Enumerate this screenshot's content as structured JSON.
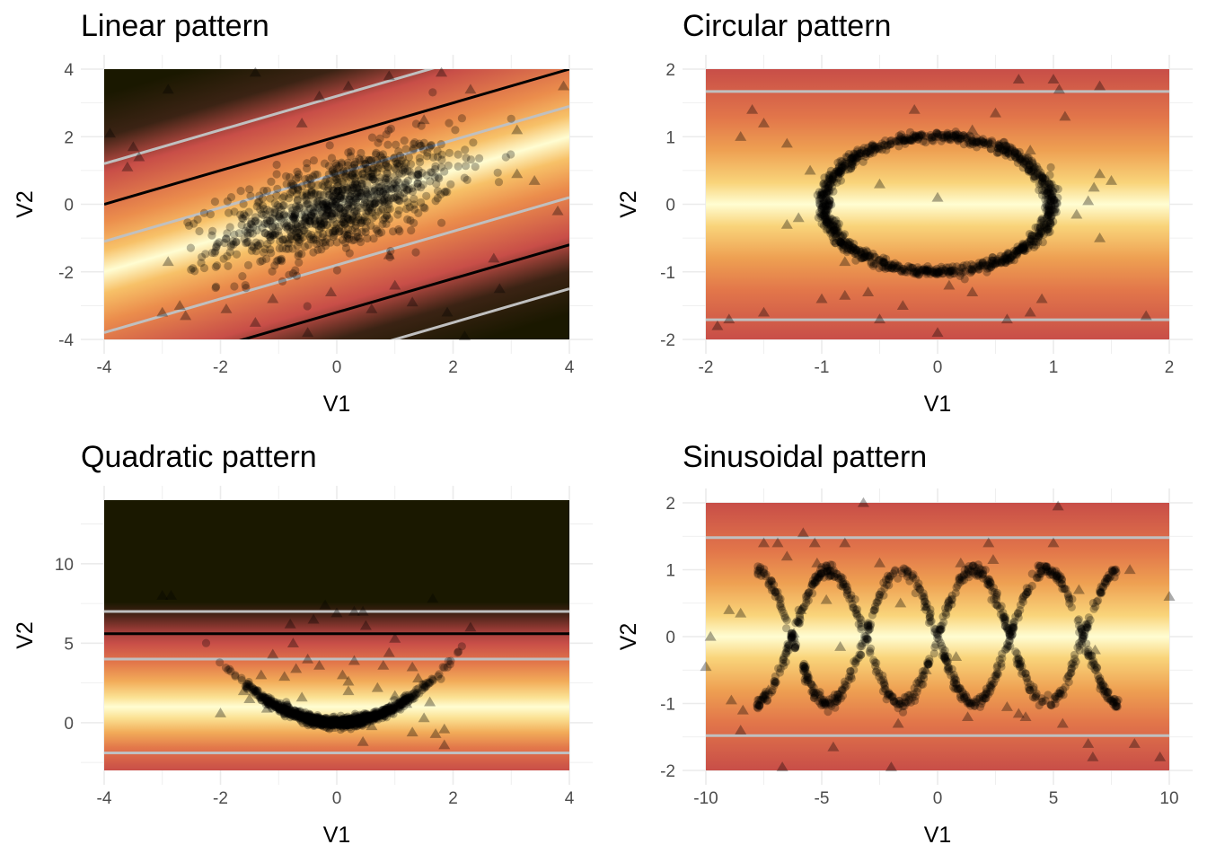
{
  "chart_data": [
    {
      "type": "scatter",
      "id": "linear",
      "title": "Linear pattern",
      "xlabel": "V1",
      "ylabel": "V2",
      "xlim": [
        -4,
        4
      ],
      "ylim": [
        -4,
        4
      ],
      "xticks": [
        -4,
        -2,
        0,
        2,
        4
      ],
      "yticks": [
        -4,
        -2,
        0,
        2,
        4
      ],
      "xtick_labels": [
        "-4",
        "-2",
        "0",
        "2",
        "4"
      ],
      "ytick_labels": [
        "-4",
        "-2",
        "0",
        "2",
        "4"
      ],
      "background": "density field along line V2 = 0.5·V1 (light yellow center, red/dark edges)",
      "contour_lines": [
        {
          "color": "#c0c0c0",
          "intercepts": [
            3.2,
            0.9,
            -1.8,
            -4.5
          ]
        },
        {
          "color": "#000000",
          "intercepts": [
            2.0,
            -3.2
          ]
        }
      ],
      "points_description": "~1000 circle points from a bivariate normal with positive correlation, centered at (0,0)",
      "outlier_markers": "~35 triangles scattered across the region",
      "triangles": [
        [
          -3.9,
          2.1
        ],
        [
          -3.6,
          1.1
        ],
        [
          -3.5,
          1.7
        ],
        [
          -2.9,
          3.4
        ],
        [
          -1.4,
          3.9
        ],
        [
          -0.3,
          3.2
        ],
        [
          0.2,
          3.5
        ],
        [
          0.9,
          3.8
        ],
        [
          1.8,
          3.9
        ],
        [
          2.3,
          3.4
        ],
        [
          3.1,
          2.2
        ],
        [
          3.9,
          3.5
        ],
        [
          3.8,
          -0.2
        ],
        [
          3.4,
          0.7
        ],
        [
          2.7,
          -1.6
        ],
        [
          2.8,
          -2.5
        ],
        [
          1.9,
          -3.2
        ],
        [
          2.2,
          -3.9
        ],
        [
          1.0,
          -2.4
        ],
        [
          0.6,
          -3.1
        ],
        [
          -0.1,
          -2.6
        ],
        [
          -0.5,
          -3.8
        ],
        [
          -1.1,
          -2.8
        ],
        [
          -1.4,
          -3.5
        ],
        [
          -1.9,
          -3.1
        ],
        [
          -2.7,
          -3.0
        ],
        [
          -2.9,
          -1.7
        ],
        [
          -2.6,
          -3.3
        ],
        [
          -3.0,
          -3.2
        ],
        [
          -3.4,
          1.4
        ],
        [
          0.9,
          -1.5
        ],
        [
          -0.6,
          2.4
        ],
        [
          1.3,
          -2.9
        ],
        [
          3.1,
          0.9
        ],
        [
          1.5,
          2.5
        ]
      ]
    },
    {
      "type": "scatter",
      "id": "circular",
      "title": "Circular pattern",
      "xlabel": "V1",
      "ylabel": "V2",
      "xlim": [
        -2,
        2
      ],
      "ylim": [
        -2,
        2
      ],
      "xticks": [
        -2,
        -1,
        0,
        1,
        2
      ],
      "yticks": [
        -2,
        -1,
        0,
        1,
        2
      ],
      "xtick_labels": [
        "-2",
        "-1",
        "0",
        "1",
        "2"
      ],
      "ytick_labels": [
        "-2",
        "-1",
        "0",
        "1",
        "2"
      ],
      "background": "horizontal bands: light yellow at V2 = 0, red toward ±2",
      "contour_lines": [
        {
          "color": "#c0c0c0",
          "levels": [
            1.67,
            -1.71
          ]
        }
      ],
      "points_description": "~1000 circle points on a circle of radius 1 with small noise",
      "outlier_markers": "~40 triangles scattered across the region",
      "triangles": [
        [
          -1.9,
          -1.8
        ],
        [
          -1.8,
          -1.7
        ],
        [
          -1.6,
          1.4
        ],
        [
          -1.7,
          1.0
        ],
        [
          -1.5,
          1.2
        ],
        [
          -1.3,
          0.9
        ],
        [
          -1.1,
          0.5
        ],
        [
          -1.2,
          -0.2
        ],
        [
          -1.5,
          -1.6
        ],
        [
          -1.0,
          -1.4
        ],
        [
          -0.8,
          -1.35
        ],
        [
          -0.6,
          -1.3
        ],
        [
          -0.5,
          -1.7
        ],
        [
          -0.3,
          -1.5
        ],
        [
          0.0,
          -1.9
        ],
        [
          0.1,
          -1.2
        ],
        [
          0.3,
          -1.3
        ],
        [
          0.6,
          -1.7
        ],
        [
          0.8,
          -1.6
        ],
        [
          0.9,
          -1.4
        ],
        [
          0.7,
          1.85
        ],
        [
          1.0,
          1.85
        ],
        [
          1.1,
          1.3
        ],
        [
          1.05,
          1.7
        ],
        [
          1.4,
          0.45
        ],
        [
          1.35,
          0.25
        ],
        [
          1.3,
          0.05
        ],
        [
          1.4,
          -0.5
        ],
        [
          1.8,
          -1.65
        ],
        [
          1.4,
          1.75
        ],
        [
          -0.5,
          0.3
        ],
        [
          0.0,
          0.1
        ],
        [
          0.3,
          1.1
        ],
        [
          -0.2,
          1.4
        ],
        [
          0.5,
          1.35
        ],
        [
          -1.3,
          -0.3
        ],
        [
          1.2,
          -0.15
        ],
        [
          -0.8,
          -0.85
        ],
        [
          0.8,
          0.8
        ],
        [
          1.5,
          0.35
        ]
      ]
    },
    {
      "type": "scatter",
      "id": "quadratic",
      "title": "Quadratic pattern",
      "xlabel": "V1",
      "ylabel": "V2",
      "xlim": [
        -4,
        4
      ],
      "ylim": [
        -3,
        14
      ],
      "xticks": [
        -4,
        -2,
        0,
        2,
        4
      ],
      "yticks": [
        0,
        5,
        10
      ],
      "xtick_labels": [
        "-4",
        "-2",
        "0",
        "2",
        "4"
      ],
      "ytick_labels": [
        "0",
        "5",
        "10"
      ],
      "background": "horizontal bands: light yellow near V2 = 1, red toward V2 = -3 and V2 = 6, dark olive above",
      "contour_lines": [
        {
          "color": "#c0c0c0",
          "levels": [
            7.0,
            4.0,
            -1.9
          ]
        },
        {
          "color": "#000000",
          "levels": [
            5.6
          ]
        }
      ],
      "points_description": "~1000 circle points on the parabola V2 = V1² for V1 in [-2.3, 2.75]",
      "outlier_markers": "~45 triangles scattered between V2 = -2 and V2 = 8",
      "triangles": [
        [
          -3.0,
          8.0
        ],
        [
          -2.85,
          8.0
        ],
        [
          -2.0,
          0.6
        ],
        [
          -1.5,
          1.5
        ],
        [
          -1.3,
          3.0
        ],
        [
          -1.2,
          0.9
        ],
        [
          -0.9,
          2.9
        ],
        [
          -0.8,
          6.2
        ],
        [
          -0.75,
          5.0
        ],
        [
          -0.7,
          3.4
        ],
        [
          -0.6,
          1.6
        ],
        [
          -0.4,
          6.5
        ],
        [
          -0.3,
          3.6
        ],
        [
          -0.2,
          7.4
        ],
        [
          0.0,
          6.9
        ],
        [
          0.1,
          3.0
        ],
        [
          0.2,
          2.6
        ],
        [
          0.3,
          7.0
        ],
        [
          0.3,
          3.9
        ],
        [
          0.45,
          7.0
        ],
        [
          0.5,
          6.1
        ],
        [
          0.7,
          2.2
        ],
        [
          0.8,
          3.6
        ],
        [
          0.9,
          1.0
        ],
        [
          1.0,
          1.7
        ],
        [
          1.2,
          1.2
        ],
        [
          1.3,
          3.5
        ],
        [
          1.5,
          0.3
        ],
        [
          1.6,
          1.3
        ],
        [
          1.7,
          -0.7
        ],
        [
          1.85,
          -1.4
        ],
        [
          1.85,
          -0.4
        ],
        [
          1.3,
          -0.6
        ],
        [
          0.6,
          -0.2
        ],
        [
          -0.1,
          -0.3
        ],
        [
          0.45,
          -1.2
        ],
        [
          1.65,
          7.8
        ],
        [
          2.3,
          6.0
        ],
        [
          1.0,
          5.3
        ],
        [
          -1.1,
          4.3
        ],
        [
          0.9,
          4.4
        ],
        [
          -0.5,
          4.0
        ],
        [
          0.2,
          2.0
        ],
        [
          1.4,
          2.8
        ],
        [
          -1.6,
          2.0
        ]
      ]
    },
    {
      "type": "scatter",
      "id": "sinusoidal",
      "title": "Sinusoidal pattern",
      "xlabel": "V1",
      "ylabel": "V2",
      "xlim": [
        -10,
        10
      ],
      "ylim": [
        -2,
        2
      ],
      "xticks": [
        -10,
        -5,
        0,
        5,
        10
      ],
      "yticks": [
        -2,
        -1,
        0,
        1,
        2
      ],
      "xtick_labels": [
        "-10",
        "-5",
        "0",
        "5",
        "10"
      ],
      "ytick_labels": [
        "-2",
        "-1",
        "0",
        "1",
        "2"
      ],
      "background": "horizontal bands: light yellow at V2 = 0, red toward ±2",
      "contour_lines": [
        {
          "color": "#c0c0c0",
          "levels": [
            1.48,
            -1.48
          ]
        }
      ],
      "points_description": "~1000 circle points on V2 = sin(V1) and V2 = -sin(V1) for V1 in [-7.8, 7.8]",
      "outlier_markers": "~45 triangles scattered across the region",
      "triangles": [
        [
          -10.0,
          -0.45
        ],
        [
          -9.8,
          0.0
        ],
        [
          -9.0,
          0.4
        ],
        [
          -8.5,
          0.35
        ],
        [
          -8.5,
          -1.4
        ],
        [
          -8.4,
          -1.1
        ],
        [
          -7.5,
          1.4
        ],
        [
          -7.3,
          -0.8
        ],
        [
          -6.9,
          1.4
        ],
        [
          -6.7,
          -1.95
        ],
        [
          -6.5,
          1.2
        ],
        [
          -6.2,
          0.05
        ],
        [
          -5.8,
          1.55
        ],
        [
          -5.9,
          0.4
        ],
        [
          -5.3,
          1.4
        ],
        [
          -5.2,
          1.1
        ],
        [
          -4.8,
          0.55
        ],
        [
          -4.2,
          -0.15
        ],
        [
          -4.0,
          1.4
        ],
        [
          -3.2,
          2.0
        ],
        [
          -2.5,
          1.1
        ],
        [
          -2.0,
          -1.95
        ],
        [
          -1.7,
          -1.3
        ],
        [
          -1.6,
          0.5
        ],
        [
          -0.5,
          0.45
        ],
        [
          -0.5,
          -0.5
        ],
        [
          0.5,
          0.55
        ],
        [
          0.8,
          -0.3
        ],
        [
          1.0,
          1.1
        ],
        [
          1.3,
          -1.2
        ],
        [
          2.2,
          1.4
        ],
        [
          2.4,
          1.15
        ],
        [
          3.0,
          -1.05
        ],
        [
          3.5,
          -1.15
        ],
        [
          3.8,
          -1.2
        ],
        [
          5.0,
          1.4
        ],
        [
          5.2,
          1.95
        ],
        [
          5.4,
          -1.3
        ],
        [
          6.1,
          0.7
        ],
        [
          6.5,
          -1.6
        ],
        [
          6.7,
          -1.8
        ],
        [
          8.3,
          1.0
        ],
        [
          8.5,
          -1.6
        ],
        [
          9.6,
          -1.8
        ],
        [
          10.0,
          0.6
        ],
        [
          -4.5,
          -1.65
        ],
        [
          6.8,
          -0.2
        ],
        [
          -8.9,
          -0.95
        ]
      ]
    }
  ]
}
